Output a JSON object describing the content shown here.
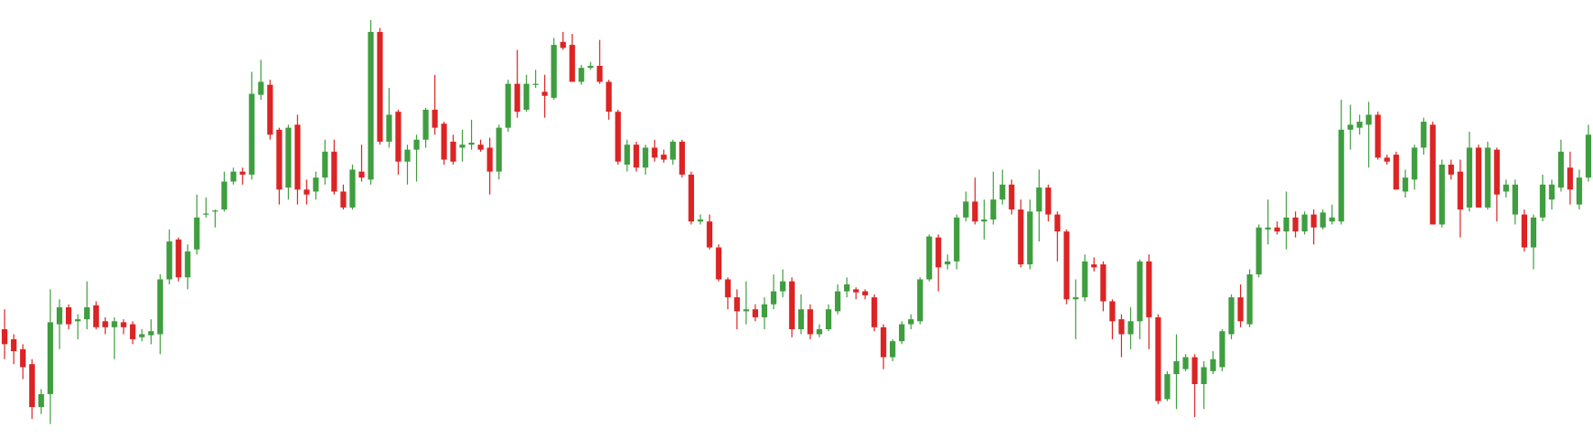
{
  "chart_data": {
    "type": "candlestick",
    "ylim": [
      0,
      440
    ],
    "up_color": "#3f9e3f",
    "down_color": "#dc2424",
    "ohlc": [
      [
        110,
        130,
        80,
        95
      ],
      [
        100,
        105,
        75,
        88
      ],
      [
        90,
        95,
        60,
        72
      ],
      [
        75,
        80,
        20,
        32
      ],
      [
        32,
        50,
        25,
        45
      ],
      [
        45,
        150,
        15,
        117
      ],
      [
        115,
        140,
        90,
        132
      ],
      [
        132,
        135,
        110,
        115
      ],
      [
        118,
        125,
        100,
        120
      ],
      [
        120,
        158,
        110,
        132
      ],
      [
        134,
        138,
        110,
        112
      ],
      [
        118,
        122,
        105,
        112
      ],
      [
        112,
        122,
        80,
        118
      ],
      [
        117,
        120,
        105,
        112
      ],
      [
        115,
        118,
        95,
        100
      ],
      [
        102,
        110,
        98,
        105
      ],
      [
        104,
        120,
        95,
        108
      ],
      [
        105,
        165,
        85,
        160
      ],
      [
        160,
        210,
        155,
        198
      ],
      [
        200,
        202,
        158,
        162
      ],
      [
        162,
        195,
        150,
        188
      ],
      [
        190,
        245,
        185,
        222
      ],
      [
        225,
        242,
        222,
        226
      ],
      [
        228,
        230,
        212,
        229
      ],
      [
        230,
        268,
        228,
        258
      ],
      [
        258,
        272,
        255,
        268
      ],
      [
        268,
        272,
        255,
        265
      ],
      [
        265,
        368,
        260,
        346
      ],
      [
        345,
        380,
        340,
        358
      ],
      [
        355,
        360,
        300,
        305
      ],
      [
        310,
        312,
        235,
        250
      ],
      [
        252,
        315,
        240,
        312
      ],
      [
        315,
        325,
        235,
        250
      ],
      [
        250,
        260,
        235,
        245
      ],
      [
        248,
        268,
        240,
        262
      ],
      [
        262,
        300,
        255,
        288
      ],
      [
        288,
        300,
        245,
        248
      ],
      [
        248,
        255,
        230,
        232
      ],
      [
        232,
        275,
        230,
        270
      ],
      [
        268,
        295,
        258,
        262
      ],
      [
        260,
        420,
        255,
        408
      ],
      [
        408,
        412,
        295,
        298
      ],
      [
        298,
        352,
        292,
        325
      ],
      [
        328,
        330,
        265,
        278
      ],
      [
        278,
        295,
        255,
        290
      ],
      [
        290,
        305,
        258,
        300
      ],
      [
        300,
        332,
        292,
        330
      ],
      [
        330,
        365,
        305,
        312
      ],
      [
        316,
        318,
        275,
        280
      ],
      [
        298,
        305,
        275,
        278
      ],
      [
        292,
        310,
        278,
        295
      ],
      [
        295,
        320,
        290,
        297
      ],
      [
        295,
        300,
        288,
        290
      ],
      [
        292,
        302,
        245,
        268
      ],
      [
        268,
        315,
        260,
        312
      ],
      [
        312,
        360,
        308,
        356
      ],
      [
        356,
        390,
        322,
        328
      ],
      [
        330,
        365,
        328,
        356
      ],
      [
        355,
        370,
        352,
        356
      ],
      [
        348,
        365,
        322,
        344
      ],
      [
        342,
        402,
        340,
        395
      ],
      [
        398,
        408,
        390,
        392
      ],
      [
        395,
        406,
        358,
        358
      ],
      [
        358,
        375,
        355,
        372
      ],
      [
        372,
        378,
        370,
        374
      ],
      [
        374,
        400,
        356,
        358
      ],
      [
        358,
        360,
        320,
        328
      ],
      [
        328,
        330,
        275,
        278
      ],
      [
        275,
        300,
        268,
        295
      ],
      [
        295,
        298,
        268,
        272
      ],
      [
        272,
        295,
        265,
        292
      ],
      [
        292,
        300,
        278,
        282
      ],
      [
        285,
        290,
        277,
        280
      ],
      [
        280,
        300,
        275,
        298
      ],
      [
        298,
        300,
        262,
        265
      ],
      [
        265,
        268,
        215,
        218
      ],
      [
        218,
        225,
        215,
        220
      ],
      [
        218,
        225,
        190,
        192
      ],
      [
        192,
        195,
        158,
        160
      ],
      [
        160,
        162,
        130,
        142
      ],
      [
        142,
        150,
        110,
        128
      ],
      [
        128,
        158,
        115,
        130
      ],
      [
        130,
        135,
        118,
        122
      ],
      [
        122,
        142,
        110,
        135
      ],
      [
        135,
        165,
        130,
        148
      ],
      [
        148,
        170,
        142,
        158
      ],
      [
        158,
        162,
        102,
        110
      ],
      [
        110,
        145,
        105,
        130
      ],
      [
        130,
        135,
        100,
        105
      ],
      [
        105,
        115,
        102,
        110
      ],
      [
        110,
        135,
        108,
        130
      ],
      [
        128,
        155,
        125,
        148
      ],
      [
        148,
        162,
        142,
        155
      ],
      [
        150,
        152,
        140,
        147
      ],
      [
        148,
        150,
        140,
        144
      ],
      [
        142,
        145,
        108,
        112
      ],
      [
        112,
        115,
        70,
        82
      ],
      [
        82,
        100,
        78,
        98
      ],
      [
        98,
        118,
        95,
        115
      ],
      [
        115,
        125,
        110,
        120
      ],
      [
        118,
        162,
        115,
        160
      ],
      [
        160,
        205,
        158,
        203
      ],
      [
        202,
        205,
        148,
        172
      ],
      [
        175,
        185,
        170,
        178
      ],
      [
        178,
        225,
        170,
        222
      ],
      [
        222,
        248,
        218,
        238
      ],
      [
        238,
        262,
        215,
        218
      ],
      [
        218,
        240,
        200,
        220
      ],
      [
        220,
        268,
        215,
        240
      ],
      [
        240,
        270,
        235,
        255
      ],
      [
        255,
        260,
        225,
        230
      ],
      [
        230,
        240,
        172,
        175
      ],
      [
        175,
        240,
        170,
        228
      ],
      [
        228,
        270,
        198,
        252
      ],
      [
        252,
        255,
        218,
        225
      ],
      [
        225,
        228,
        178,
        208
      ],
      [
        208,
        210,
        135,
        140
      ],
      [
        140,
        160,
        100,
        142
      ],
      [
        142,
        185,
        138,
        178
      ],
      [
        175,
        182,
        168,
        172
      ],
      [
        175,
        178,
        128,
        138
      ],
      [
        138,
        140,
        100,
        118
      ],
      [
        120,
        125,
        82,
        105
      ],
      [
        105,
        132,
        90,
        118
      ],
      [
        118,
        180,
        100,
        178
      ],
      [
        178,
        185,
        90,
        122
      ],
      [
        122,
        125,
        35,
        38
      ],
      [
        40,
        68,
        38,
        65
      ],
      [
        65,
        105,
        30,
        78
      ],
      [
        70,
        85,
        68,
        82
      ],
      [
        82,
        85,
        22,
        55
      ],
      [
        55,
        78,
        30,
        72
      ],
      [
        68,
        88,
        65,
        80
      ],
      [
        72,
        110,
        68,
        108
      ],
      [
        105,
        145,
        100,
        142
      ],
      [
        142,
        155,
        112,
        118
      ],
      [
        115,
        170,
        112,
        165
      ],
      [
        165,
        215,
        162,
        212
      ],
      [
        210,
        240,
        195,
        212
      ],
      [
        212,
        218,
        205,
        208
      ],
      [
        208,
        248,
        190,
        222
      ],
      [
        222,
        228,
        202,
        208
      ],
      [
        208,
        228,
        205,
        225
      ],
      [
        225,
        230,
        195,
        212
      ],
      [
        212,
        230,
        210,
        227
      ],
      [
        218,
        235,
        215,
        222
      ],
      [
        218,
        340,
        215,
        310
      ],
      [
        310,
        335,
        290,
        315
      ],
      [
        312,
        325,
        305,
        318
      ],
      [
        315,
        338,
        272,
        325
      ],
      [
        325,
        328,
        280,
        282
      ],
      [
        282,
        285,
        275,
        278
      ],
      [
        285,
        288,
        250,
        250
      ],
      [
        248,
        270,
        242,
        262
      ],
      [
        260,
        295,
        250,
        292
      ],
      [
        292,
        322,
        285,
        318
      ],
      [
        315,
        318,
        215,
        215
      ],
      [
        215,
        280,
        212,
        275
      ],
      [
        275,
        280,
        260,
        265
      ],
      [
        268,
        280,
        202,
        230
      ],
      [
        232,
        308,
        228,
        292
      ],
      [
        292,
        295,
        232,
        232
      ],
      [
        232,
        298,
        230,
        292
      ],
      [
        290,
        292,
        218,
        245
      ],
      [
        248,
        260,
        242,
        255
      ],
      [
        225,
        260,
        215,
        255
      ],
      [
        225,
        230,
        188,
        192
      ],
      [
        192,
        225,
        170,
        222
      ],
      [
        222,
        265,
        218,
        255
      ],
      [
        240,
        260,
        230,
        255
      ],
      [
        252,
        300,
        248,
        288
      ],
      [
        272,
        288,
        235,
        250
      ],
      [
        235,
        270,
        230,
        262
      ],
      [
        262,
        315,
        258,
        305
      ]
    ]
  }
}
